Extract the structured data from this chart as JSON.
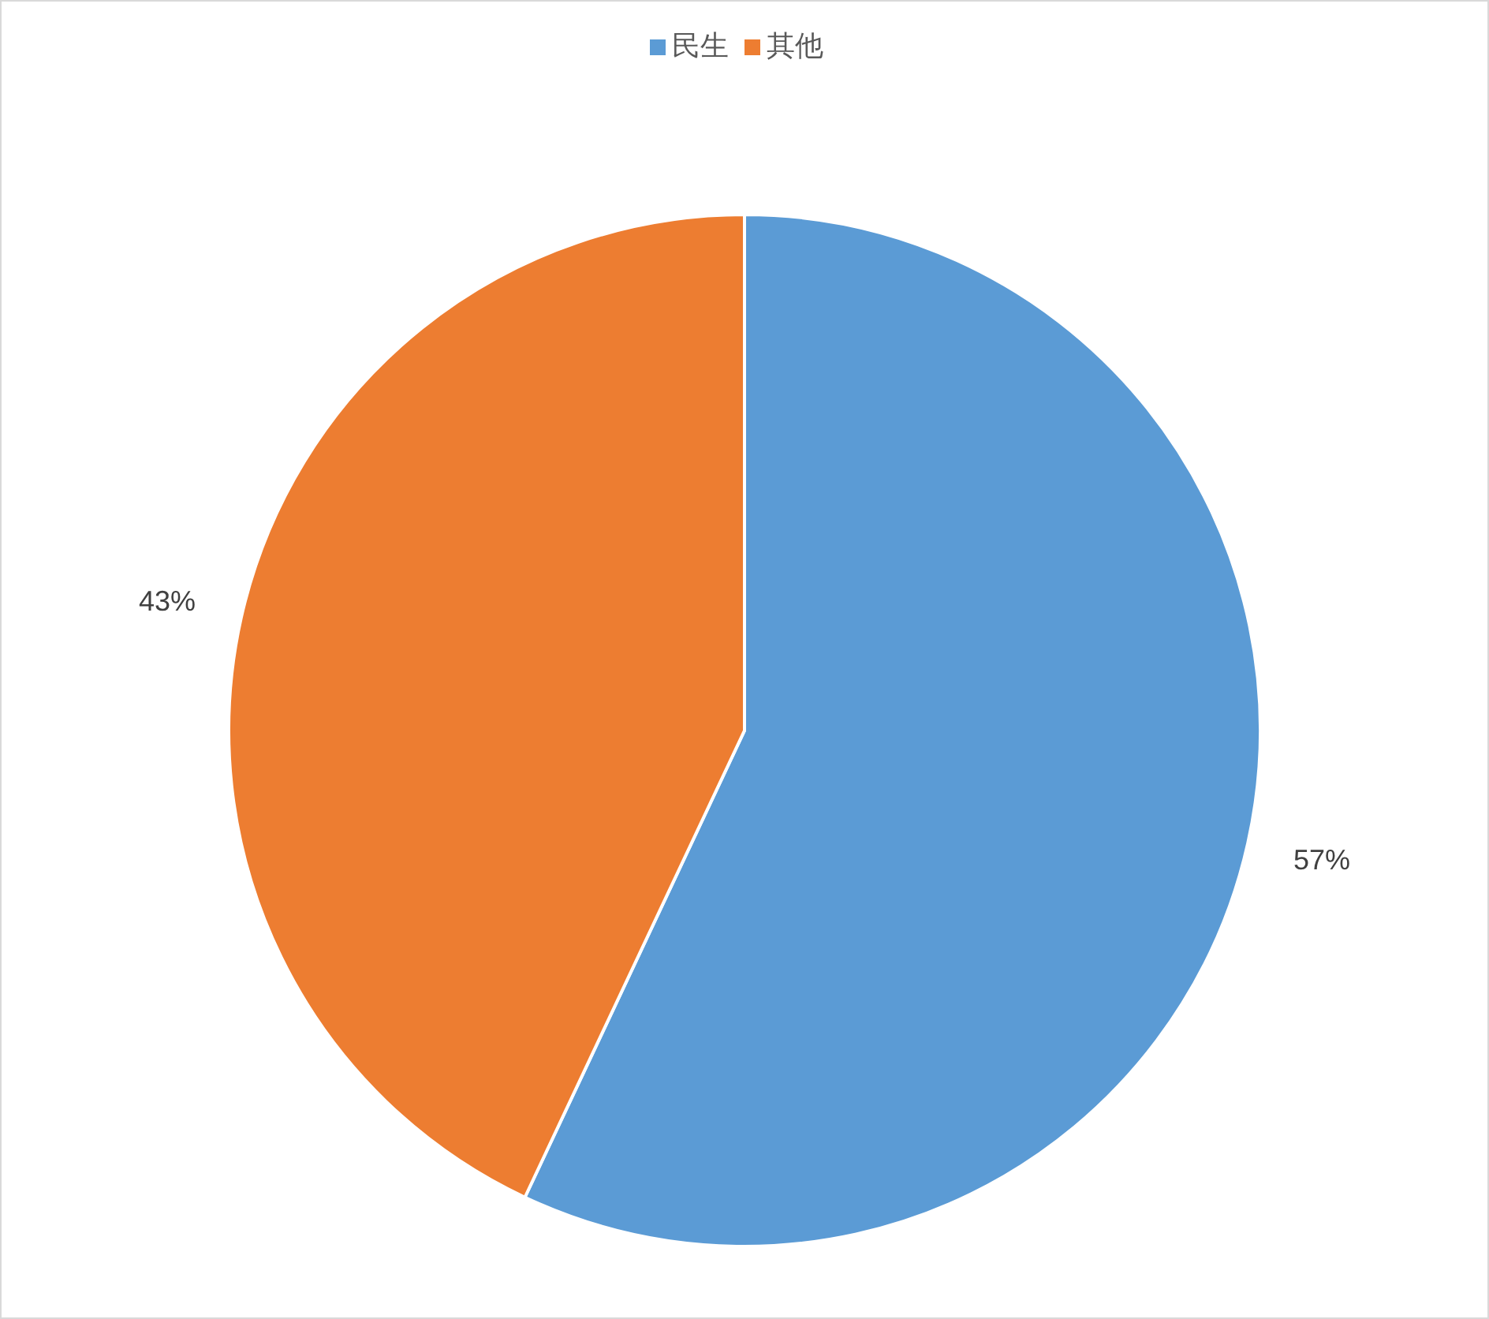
{
  "chart_data": {
    "type": "pie",
    "categories": [
      "民生",
      "其他"
    ],
    "values": [
      57,
      43
    ],
    "colors": [
      "#5b9bd5",
      "#ed7d31"
    ],
    "value_labels": [
      "57%",
      "43%"
    ],
    "legend": "top"
  }
}
